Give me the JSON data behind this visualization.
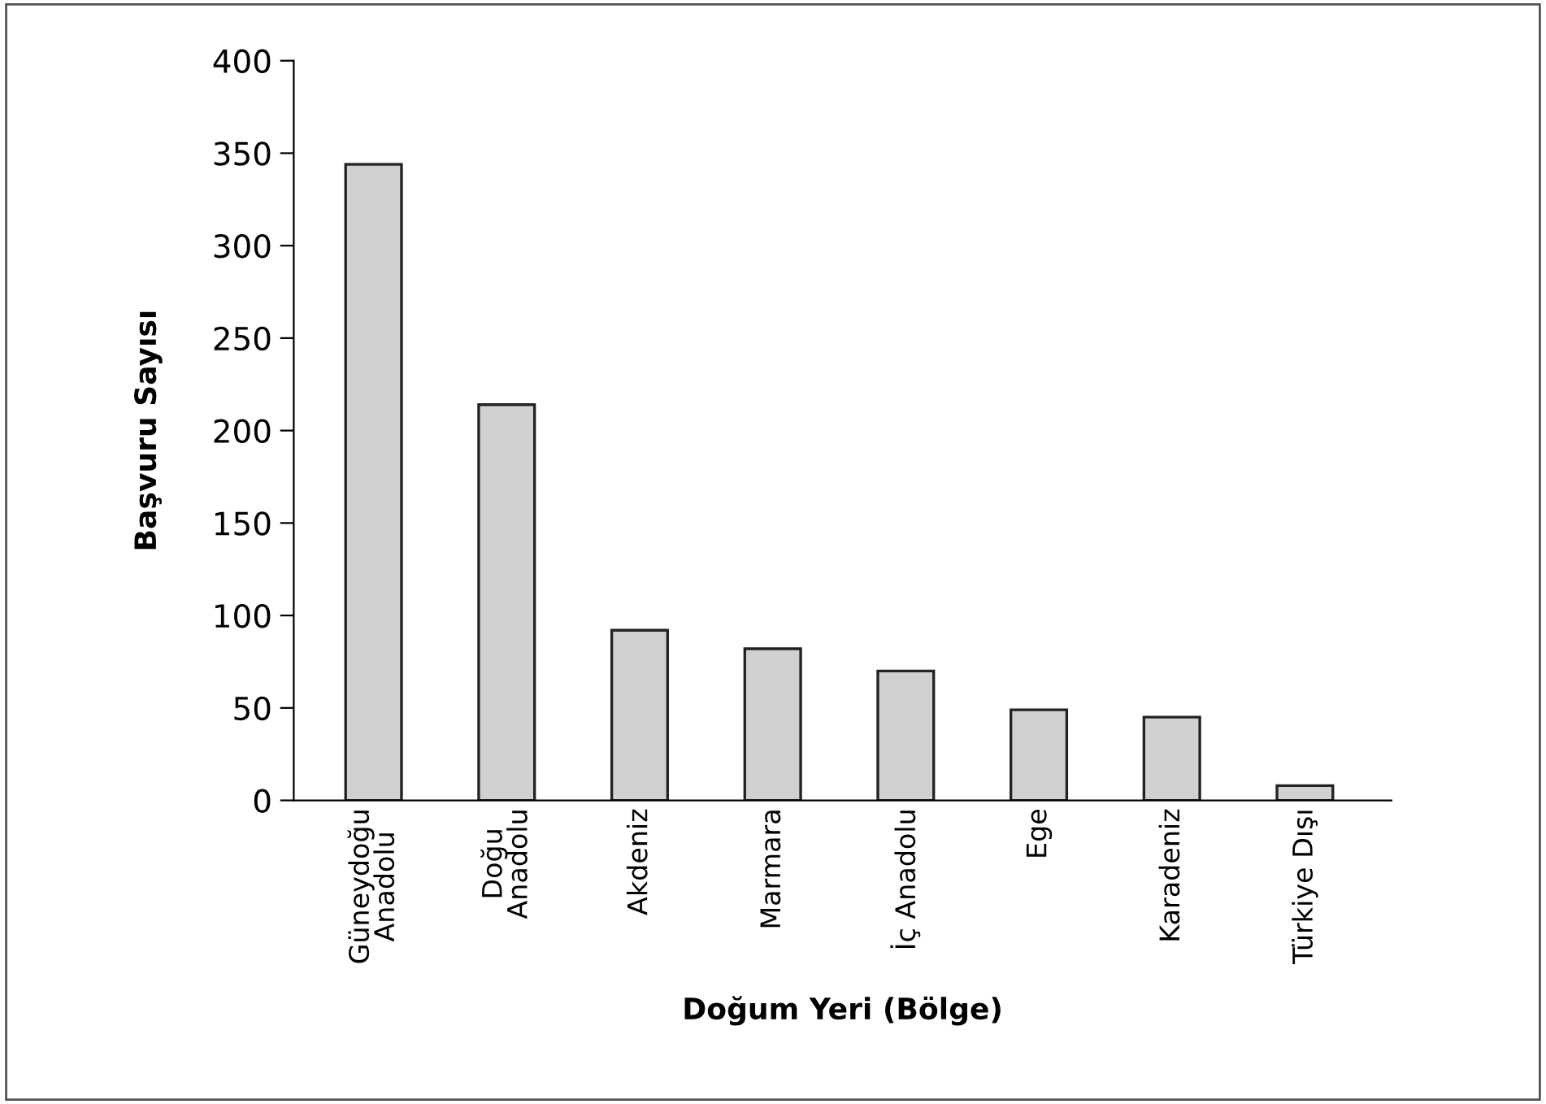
{
  "chart_data": {
    "type": "bar",
    "xlabel": "Doğum Yeri (Bölge)",
    "ylabel": "Başvuru Sayısı",
    "categories": [
      "Güneydoğu\nAnadolu",
      "Doğu\nAnadolu",
      "Akdeniz",
      "Marmara",
      "İç Anadolu",
      "Ege",
      "Karadeniz",
      "Türkiye Dışı"
    ],
    "values": [
      344,
      214,
      92,
      82,
      70,
      49,
      45,
      8
    ],
    "color": "#d0d1d3",
    "ylim": [
      0,
      400
    ],
    "yticks": [
      0,
      50,
      100,
      150,
      200,
      250,
      300,
      350,
      400
    ],
    "grid": false
  }
}
